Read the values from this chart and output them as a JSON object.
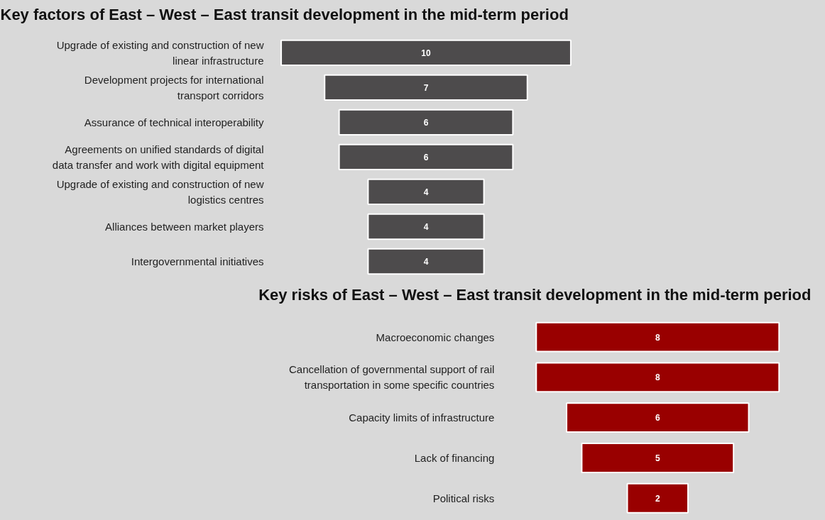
{
  "chart_data": [
    {
      "type": "other",
      "title": "Key factors of East – West – East transit development in the mid-term period",
      "categories": [
        "Upgrade of existing and construction of new linear infrastructure",
        "Development projects for international transport corridors",
        "Assurance of technical interoperability",
        "Agreements on unified standards of digital data transfer and work with digital equipment",
        "Upgrade of existing and construction of new logistics centres",
        "Alliances between market players",
        "Intergovernmental initiatives"
      ],
      "values": [
        10,
        7,
        6,
        6,
        4,
        4,
        4
      ],
      "color": "#4d4b4c",
      "data_labels": true
    },
    {
      "type": "other",
      "title": "Key risks of East – West – East transit development in the mid-term period",
      "categories": [
        "Macroeconomic changes",
        "Cancellation of governmental support of rail transportation in some specific countries",
        "Capacity limits of infrastructure",
        "Lack of financing",
        "Political risks"
      ],
      "values": [
        8,
        8,
        6,
        5,
        2
      ],
      "color": "#990000",
      "data_labels": true
    }
  ]
}
